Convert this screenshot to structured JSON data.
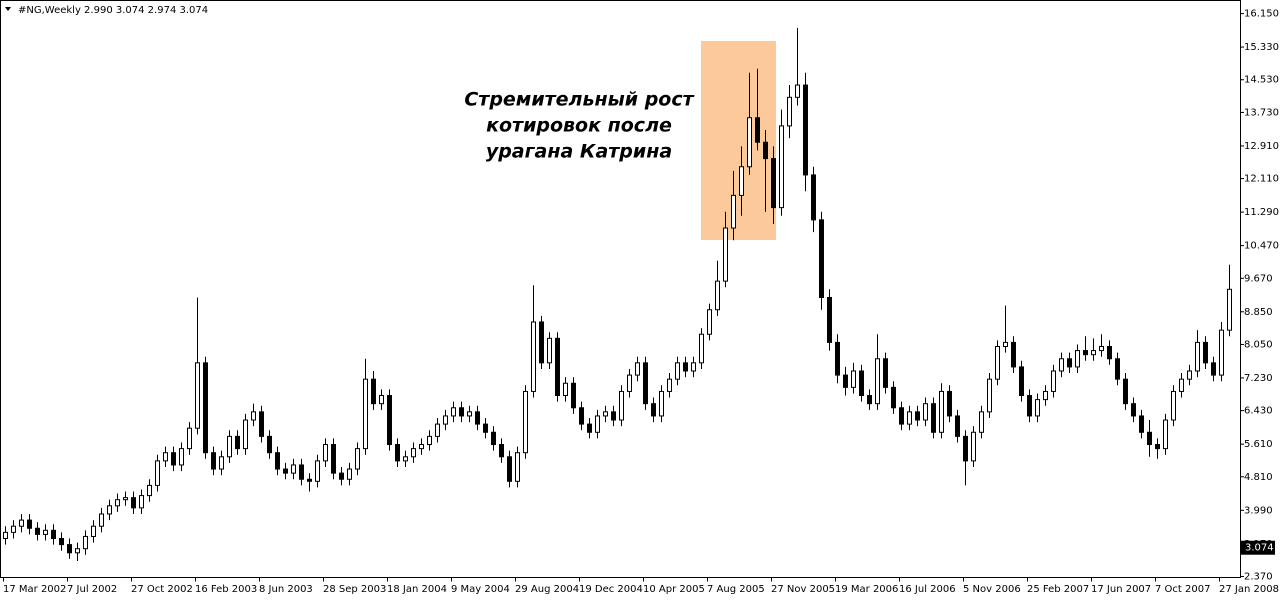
{
  "chart_data": {
    "type": "candlestick",
    "title": "#NG,Weekly  2.990 3.074 2.974 3.074",
    "annotation": [
      "Стремительный рост",
      "котировок после",
      "урагана Катрина"
    ],
    "up_color": "#ffffff",
    "down_color": "#000000",
    "line_color": "#000000",
    "highlight_color": "#fcc99a",
    "ylim": [
      2.345,
      16.47
    ],
    "yticks": [
      {
        "value": 16.15,
        "label": "16.150"
      },
      {
        "value": 15.33,
        "label": "15.330"
      },
      {
        "value": 14.53,
        "label": "14.530"
      },
      {
        "value": 13.73,
        "label": "13.730"
      },
      {
        "value": 12.91,
        "label": "12.910"
      },
      {
        "value": 12.11,
        "label": "12.110"
      },
      {
        "value": 11.29,
        "label": "11.290"
      },
      {
        "value": 10.47,
        "label": "10.470"
      },
      {
        "value": 9.67,
        "label": "9.670"
      },
      {
        "value": 8.85,
        "label": "8.850"
      },
      {
        "value": 8.05,
        "label": "8.050"
      },
      {
        "value": 7.23,
        "label": "7.230"
      },
      {
        "value": 6.43,
        "label": "6.430"
      },
      {
        "value": 5.61,
        "label": "5.610"
      },
      {
        "value": 4.81,
        "label": "4.810"
      },
      {
        "value": 3.99,
        "label": "3.990"
      },
      {
        "value": 3.17,
        "label": "3.170"
      },
      {
        "value": 2.37,
        "label": "2.370"
      }
    ],
    "last_price": {
      "value": 3.074,
      "label": "3.074"
    },
    "categories": [
      "17 Mar 2002",
      null,
      null,
      null,
      null,
      null,
      null,
      null,
      "7 Jul 2002",
      null,
      null,
      null,
      null,
      null,
      null,
      null,
      "27 Oct 2002",
      null,
      null,
      null,
      null,
      null,
      null,
      null,
      "16 Feb 2003",
      null,
      null,
      null,
      null,
      null,
      null,
      null,
      "8 Jun 2003",
      null,
      null,
      null,
      null,
      null,
      null,
      null,
      "28 Sep 2003",
      null,
      null,
      null,
      null,
      null,
      null,
      null,
      "18 Jan 2004",
      null,
      null,
      null,
      null,
      null,
      null,
      null,
      "9 May 2004",
      null,
      null,
      null,
      null,
      null,
      null,
      null,
      "29 Aug 2004",
      null,
      null,
      null,
      null,
      null,
      null,
      null,
      "19 Dec 2004",
      null,
      null,
      null,
      null,
      null,
      null,
      null,
      "10 Apr 2005",
      null,
      null,
      null,
      null,
      null,
      null,
      null,
      "7 Aug 2005",
      null,
      null,
      null,
      null,
      null,
      null,
      null,
      "27 Nov 2005",
      null,
      null,
      null,
      null,
      null,
      null,
      null,
      "19 Mar 2006",
      null,
      null,
      null,
      null,
      null,
      null,
      null,
      "16 Jul 2006",
      null,
      null,
      null,
      null,
      null,
      null,
      null,
      "5 Nov 2006",
      null,
      null,
      null,
      null,
      null,
      null,
      null,
      "25 Feb 2007",
      null,
      null,
      null,
      null,
      null,
      null,
      null,
      "17 Jun 2007",
      null,
      null,
      null,
      null,
      null,
      null,
      null,
      "7 Oct 2007",
      null,
      null,
      null,
      null,
      null,
      null,
      null,
      "27 Jan 2008",
      null
    ],
    "candles": [
      [
        3.3,
        3.6,
        3.15,
        3.45
      ],
      [
        3.45,
        3.75,
        3.3,
        3.6
      ],
      [
        3.6,
        3.9,
        3.45,
        3.75
      ],
      [
        3.75,
        3.9,
        3.4,
        3.55
      ],
      [
        3.55,
        3.7,
        3.25,
        3.4
      ],
      [
        3.4,
        3.65,
        3.25,
        3.5
      ],
      [
        3.5,
        3.65,
        3.15,
        3.3
      ],
      [
        3.3,
        3.45,
        3.0,
        3.15
      ],
      [
        3.15,
        3.3,
        2.8,
        2.95
      ],
      [
        2.95,
        3.2,
        2.75,
        3.05
      ],
      [
        3.05,
        3.5,
        2.9,
        3.35
      ],
      [
        3.35,
        3.75,
        3.2,
        3.6
      ],
      [
        3.6,
        4.05,
        3.45,
        3.9
      ],
      [
        3.9,
        4.25,
        3.75,
        4.1
      ],
      [
        4.1,
        4.4,
        3.95,
        4.25
      ],
      [
        4.25,
        4.45,
        4.1,
        4.3
      ],
      [
        4.3,
        4.45,
        3.9,
        4.05
      ],
      [
        4.05,
        4.5,
        3.9,
        4.35
      ],
      [
        4.35,
        4.75,
        4.2,
        4.6
      ],
      [
        4.6,
        5.35,
        4.45,
        5.2
      ],
      [
        5.2,
        5.55,
        5.05,
        5.4
      ],
      [
        5.4,
        5.55,
        4.95,
        5.1
      ],
      [
        5.1,
        5.65,
        4.95,
        5.5
      ],
      [
        5.5,
        6.15,
        5.35,
        6.0
      ],
      [
        6.0,
        9.2,
        5.85,
        7.6
      ],
      [
        7.6,
        7.75,
        5.25,
        5.4
      ],
      [
        5.4,
        5.55,
        4.85,
        5.0
      ],
      [
        5.0,
        5.45,
        4.85,
        5.3
      ],
      [
        5.3,
        5.95,
        5.15,
        5.8
      ],
      [
        5.8,
        5.95,
        5.35,
        5.5
      ],
      [
        5.5,
        6.35,
        5.35,
        6.2
      ],
      [
        6.2,
        6.6,
        6.05,
        6.4
      ],
      [
        6.4,
        6.55,
        5.65,
        5.8
      ],
      [
        5.8,
        5.95,
        5.25,
        5.4
      ],
      [
        5.4,
        5.55,
        4.85,
        5.0
      ],
      [
        5.0,
        5.15,
        4.75,
        4.9
      ],
      [
        4.9,
        5.25,
        4.75,
        5.1
      ],
      [
        5.1,
        5.25,
        4.6,
        4.75
      ],
      [
        4.75,
        4.9,
        4.45,
        4.7
      ],
      [
        4.7,
        5.35,
        4.55,
        5.2
      ],
      [
        5.2,
        5.75,
        5.05,
        5.6
      ],
      [
        5.6,
        5.75,
        4.75,
        4.9
      ],
      [
        4.9,
        5.05,
        4.6,
        4.75
      ],
      [
        4.75,
        5.15,
        4.6,
        5.0
      ],
      [
        5.0,
        5.65,
        4.85,
        5.5
      ],
      [
        5.5,
        7.7,
        5.35,
        7.2
      ],
      [
        7.2,
        7.4,
        6.45,
        6.6
      ],
      [
        6.6,
        6.95,
        6.45,
        6.8
      ],
      [
        6.8,
        6.95,
        5.45,
        5.6
      ],
      [
        5.6,
        5.75,
        5.05,
        5.2
      ],
      [
        5.2,
        5.45,
        5.05,
        5.3
      ],
      [
        5.3,
        5.65,
        5.15,
        5.5
      ],
      [
        5.5,
        5.75,
        5.35,
        5.6
      ],
      [
        5.6,
        5.95,
        5.45,
        5.8
      ],
      [
        5.8,
        6.25,
        5.65,
        6.1
      ],
      [
        6.1,
        6.45,
        5.95,
        6.3
      ],
      [
        6.3,
        6.65,
        6.15,
        6.5
      ],
      [
        6.5,
        6.65,
        6.15,
        6.3
      ],
      [
        6.3,
        6.55,
        6.15,
        6.4
      ],
      [
        6.4,
        6.55,
        5.95,
        6.1
      ],
      [
        6.1,
        6.25,
        5.75,
        5.9
      ],
      [
        5.9,
        6.05,
        5.45,
        5.6
      ],
      [
        5.6,
        5.75,
        5.15,
        5.3
      ],
      [
        5.3,
        5.45,
        4.55,
        4.7
      ],
      [
        4.7,
        5.55,
        4.55,
        5.4
      ],
      [
        5.4,
        7.05,
        5.25,
        6.9
      ],
      [
        6.9,
        9.5,
        6.75,
        8.6
      ],
      [
        8.6,
        8.75,
        7.45,
        7.6
      ],
      [
        7.6,
        8.35,
        7.45,
        8.2
      ],
      [
        8.2,
        8.35,
        6.65,
        6.8
      ],
      [
        6.8,
        7.25,
        6.65,
        7.1
      ],
      [
        7.1,
        7.25,
        6.35,
        6.5
      ],
      [
        6.5,
        6.65,
        5.95,
        6.1
      ],
      [
        6.1,
        6.25,
        5.75,
        5.9
      ],
      [
        5.9,
        6.45,
        5.75,
        6.3
      ],
      [
        6.3,
        6.55,
        6.15,
        6.4
      ],
      [
        6.4,
        6.55,
        6.05,
        6.2
      ],
      [
        6.2,
        7.05,
        6.05,
        6.9
      ],
      [
        6.9,
        7.45,
        6.75,
        7.3
      ],
      [
        7.3,
        7.75,
        7.15,
        7.6
      ],
      [
        7.6,
        7.75,
        6.45,
        6.6
      ],
      [
        6.6,
        6.75,
        6.15,
        6.3
      ],
      [
        6.3,
        7.05,
        6.15,
        6.9
      ],
      [
        6.9,
        7.35,
        6.75,
        7.2
      ],
      [
        7.2,
        7.75,
        7.05,
        7.6
      ],
      [
        7.6,
        7.75,
        7.25,
        7.4
      ],
      [
        7.4,
        7.75,
        7.25,
        7.6
      ],
      [
        7.6,
        8.45,
        7.45,
        8.3
      ],
      [
        8.3,
        9.05,
        8.15,
        8.9
      ],
      [
        8.9,
        10.1,
        8.75,
        9.6
      ],
      [
        9.6,
        11.3,
        9.45,
        10.9
      ],
      [
        10.9,
        12.3,
        10.6,
        11.7
      ],
      [
        11.7,
        12.9,
        11.2,
        12.4
      ],
      [
        12.4,
        14.7,
        12.2,
        13.6
      ],
      [
        13.6,
        14.8,
        12.8,
        13.0
      ],
      [
        13.0,
        13.3,
        11.3,
        12.6
      ],
      [
        12.6,
        12.9,
        11.0,
        11.4
      ],
      [
        11.4,
        13.8,
        11.2,
        13.4
      ],
      [
        13.4,
        14.4,
        13.1,
        14.1
      ],
      [
        14.1,
        15.8,
        13.9,
        14.4
      ],
      [
        14.4,
        14.7,
        11.8,
        12.2
      ],
      [
        12.2,
        12.4,
        10.8,
        11.1
      ],
      [
        11.1,
        11.3,
        8.9,
        9.2
      ],
      [
        9.2,
        9.4,
        7.9,
        8.1
      ],
      [
        8.1,
        8.3,
        7.1,
        7.3
      ],
      [
        7.3,
        7.5,
        6.8,
        7.0
      ],
      [
        7.0,
        7.6,
        6.85,
        7.4
      ],
      [
        7.4,
        7.55,
        6.65,
        6.8
      ],
      [
        6.8,
        6.95,
        6.45,
        6.6
      ],
      [
        6.6,
        8.3,
        6.45,
        7.7
      ],
      [
        7.7,
        7.85,
        6.85,
        7.0
      ],
      [
        7.0,
        7.15,
        6.35,
        6.5
      ],
      [
        6.5,
        6.65,
        5.95,
        6.1
      ],
      [
        6.1,
        6.55,
        5.95,
        6.4
      ],
      [
        6.4,
        6.55,
        6.05,
        6.2
      ],
      [
        6.2,
        6.75,
        6.05,
        6.6
      ],
      [
        6.6,
        6.75,
        5.75,
        5.9
      ],
      [
        5.9,
        7.1,
        5.75,
        6.9
      ],
      [
        6.9,
        7.05,
        6.15,
        6.3
      ],
      [
        6.3,
        6.45,
        5.65,
        5.8
      ],
      [
        5.8,
        5.95,
        4.6,
        5.2
      ],
      [
        5.2,
        6.05,
        5.05,
        5.9
      ],
      [
        5.9,
        6.55,
        5.75,
        6.4
      ],
      [
        6.4,
        7.35,
        6.25,
        7.2
      ],
      [
        7.2,
        8.15,
        7.05,
        8.0
      ],
      [
        8.0,
        9.0,
        7.85,
        8.1
      ],
      [
        8.1,
        8.25,
        7.35,
        7.5
      ],
      [
        7.5,
        7.65,
        6.65,
        6.8
      ],
      [
        6.8,
        6.95,
        6.15,
        6.3
      ],
      [
        6.3,
        6.85,
        6.15,
        6.7
      ],
      [
        6.7,
        7.05,
        6.55,
        6.9
      ],
      [
        6.9,
        7.55,
        6.75,
        7.4
      ],
      [
        7.4,
        7.85,
        7.25,
        7.7
      ],
      [
        7.7,
        7.85,
        7.35,
        7.5
      ],
      [
        7.5,
        8.05,
        7.35,
        7.9
      ],
      [
        7.9,
        8.25,
        7.65,
        7.8
      ],
      [
        7.8,
        8.2,
        7.65,
        7.9
      ],
      [
        7.9,
        8.3,
        7.75,
        8.0
      ],
      [
        8.0,
        8.15,
        7.55,
        7.7
      ],
      [
        7.7,
        7.85,
        7.05,
        7.2
      ],
      [
        7.2,
        7.35,
        6.45,
        6.6
      ],
      [
        6.6,
        6.75,
        6.15,
        6.3
      ],
      [
        6.3,
        6.45,
        5.75,
        5.9
      ],
      [
        5.9,
        6.2,
        5.3,
        5.6
      ],
      [
        5.6,
        5.75,
        5.25,
        5.5
      ],
      [
        5.5,
        6.35,
        5.35,
        6.2
      ],
      [
        6.2,
        7.05,
        6.05,
        6.9
      ],
      [
        6.9,
        7.35,
        6.75,
        7.2
      ],
      [
        7.2,
        7.55,
        7.05,
        7.4
      ],
      [
        7.4,
        8.4,
        7.25,
        8.1
      ],
      [
        8.1,
        8.25,
        7.45,
        7.6
      ],
      [
        7.6,
        7.75,
        7.15,
        7.3
      ],
      [
        7.3,
        8.6,
        7.15,
        8.4
      ],
      [
        8.4,
        10.0,
        8.25,
        9.4
      ]
    ]
  }
}
